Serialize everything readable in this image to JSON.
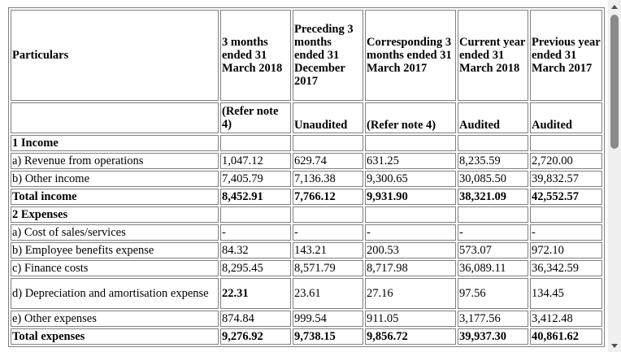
{
  "table": {
    "header": {
      "particulars": "Particulars",
      "col1": "3 months ended 31 March 2018",
      "col2": "Preceding 3 months ended 31 December 2017",
      "col3": "Corresponding 3 months ended 31 March 2017",
      "col4": "Current year ended 31 March 2018",
      "col5": "Previous year ended 31 March 2017"
    },
    "subheader": {
      "col1": "(Refer note 4)",
      "col2": "Unaudited",
      "col3": "(Refer note 4)",
      "col4": "Audited",
      "col5": "Audited"
    },
    "rows": [
      {
        "label": "1 Income",
        "bold": true,
        "section": true,
        "values": [
          "",
          "",
          "",
          "",
          ""
        ]
      },
      {
        "label": "a) Revenue from operations",
        "values": [
          "1,047.12",
          "629.74",
          "631.25",
          "8,235.59",
          "2,720.00"
        ]
      },
      {
        "label": "b) Other income",
        "values": [
          "7,405.79",
          "7,136.38",
          "9,300.65",
          "30,085.50",
          "39,832.57"
        ]
      },
      {
        "label": "Total income",
        "bold": true,
        "values": [
          "8,452.91",
          "7,766.12",
          "9,931.90",
          "38,321.09",
          "42,552.57"
        ]
      },
      {
        "label": "2 Expenses",
        "bold": true,
        "section": true,
        "values": [
          "",
          "",
          "",
          "",
          ""
        ]
      },
      {
        "label": "a) Cost of sales/services",
        "values": [
          "-",
          "-",
          "-",
          "-",
          "-"
        ]
      },
      {
        "label": "b) Employee benefits expense",
        "values": [
          "84.32",
          "143.21",
          "200.53",
          "573.07",
          "972.10"
        ]
      },
      {
        "label": "c) Finance costs",
        "values": [
          "8,295.45",
          "8,571.79",
          "8,717.98",
          "36,089.11",
          "36,342.59"
        ]
      },
      {
        "label": "d) Depreciation and amortisation expense",
        "values": [
          "22.31",
          "23.61",
          "27.16",
          "97.56",
          "134.45"
        ],
        "boldFirst": true
      },
      {
        "label": "e) Other expenses",
        "values": [
          "874.84",
          "999.54",
          "911.05",
          "3,177.56",
          "3,412.48"
        ]
      },
      {
        "label": "Total expenses",
        "bold": true,
        "values": [
          "9,276.92",
          "9,738.15",
          "9,856.72",
          "39,937.30",
          "40,861.62"
        ]
      }
    ]
  }
}
